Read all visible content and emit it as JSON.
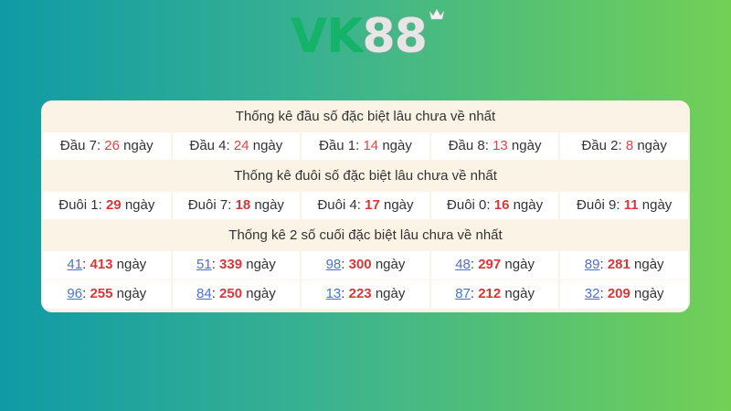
{
  "logo": {
    "text_a": "VK",
    "text_b": "88"
  },
  "sections": [
    {
      "title": "Thống kê đầu số đặc biệt lâu chưa về nhất",
      "rows": [
        [
          {
            "label": "Đầu 7",
            "value": "26"
          },
          {
            "label": "Đầu 4",
            "value": "24"
          },
          {
            "label": "Đầu 1",
            "value": "14"
          },
          {
            "label": "Đầu 8",
            "value": "13"
          },
          {
            "label": "Đầu 2",
            "value": "8"
          }
        ]
      ]
    },
    {
      "title": "Thống kê đuôi số đặc biệt lâu chưa về nhất",
      "rows": [
        [
          {
            "label": "Đuôi 1",
            "value": "29"
          },
          {
            "label": "Đuôi 7",
            "value": "18"
          },
          {
            "label": "Đuôi 4",
            "value": "17"
          },
          {
            "label": "Đuôi 0",
            "value": "16"
          },
          {
            "label": "Đuôi 9",
            "value": "11"
          }
        ]
      ]
    },
    {
      "title": "Thống kê 2 số cuối đặc biệt lâu chưa về nhất",
      "rows": [
        [
          {
            "label": "41",
            "value": "413"
          },
          {
            "label": "51",
            "value": "339"
          },
          {
            "label": "98",
            "value": "300"
          },
          {
            "label": "48",
            "value": "297"
          },
          {
            "label": "89",
            "value": "281"
          }
        ],
        [
          {
            "label": "96",
            "value": "255"
          },
          {
            "label": "84",
            "value": "250"
          },
          {
            "label": "13",
            "value": "223"
          },
          {
            "label": "87",
            "value": "212"
          },
          {
            "label": "32",
            "value": "209"
          }
        ]
      ]
    }
  ],
  "unit": "ngày",
  "colors": {
    "value_red": "#d63838",
    "link_blue": "#4a72c8",
    "header_bg": "#fbf3e6"
  }
}
